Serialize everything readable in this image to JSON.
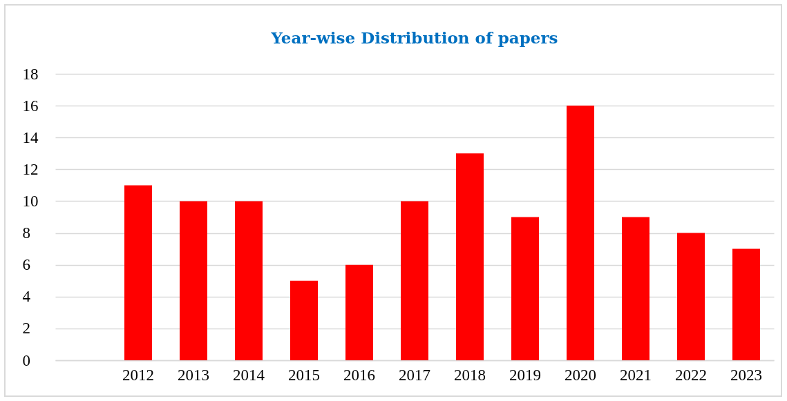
{
  "chart_data": {
    "type": "bar",
    "title": "Year-wise Distribution of papers",
    "categories": [
      null,
      "2012",
      "2013",
      "2014",
      "2015",
      "2016",
      "2017",
      "2018",
      "2019",
      "2020",
      "2021",
      "2022",
      "2023"
    ],
    "values": [
      null,
      11,
      10,
      10,
      5,
      6,
      10,
      13,
      9,
      16,
      9,
      8,
      7
    ],
    "color": "#ff0000",
    "ylim": [
      0,
      18
    ],
    "yticks": [
      0,
      2,
      4,
      6,
      8,
      10,
      12,
      14,
      16,
      18
    ],
    "grid": "y"
  }
}
